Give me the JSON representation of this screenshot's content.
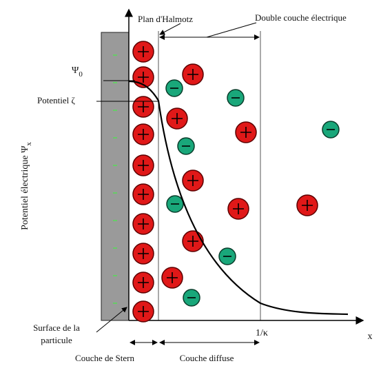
{
  "labels": {
    "plan": "Plan d'Halmotz",
    "double_layer": "Double couche électrique",
    "psi0": {
      "symbol": "Ψ",
      "subscript": "0"
    },
    "zeta": "Potentiel ζ",
    "y_axis": {
      "text": "Potentiel électrique Ψ",
      "subscript": "x"
    },
    "surface": [
      "Surface de la",
      "particule"
    ],
    "kappa": "1/κ",
    "x_axis": "x",
    "stern": "Couche de Stern",
    "diffuse": "Couche diffuse"
  }
}
